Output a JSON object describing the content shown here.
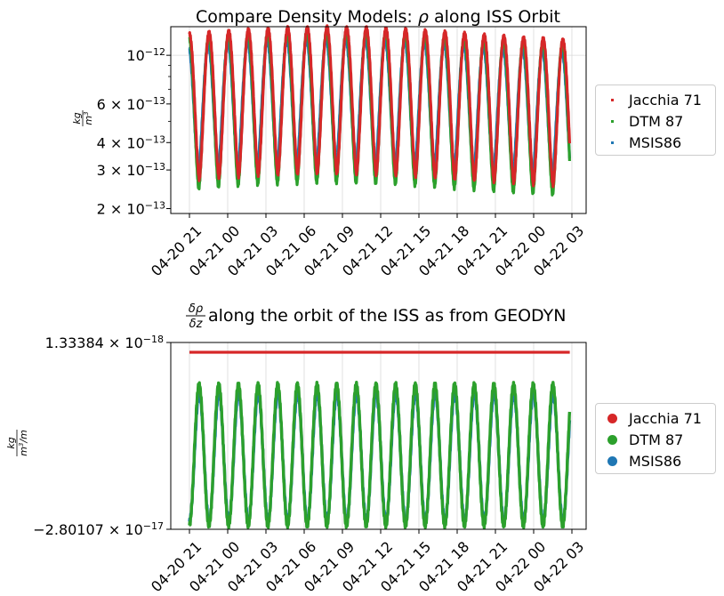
{
  "colors": {
    "jacchia": "#d62728",
    "dtm": "#2ca02c",
    "msis": "#1f77b4",
    "grid": "#d8d8d8"
  },
  "chart_data": [
    {
      "type": "scatter",
      "title": "Compare Density Models: ρ along ISS Orbit",
      "title_parts": {
        "prefix": "Compare Density Models: ",
        "symbol": "ρ",
        "suffix": " along ISS Orbit"
      },
      "ylabel": {
        "numerator": "kg",
        "denominator": "m",
        "exponent": "3"
      },
      "yscale": "log",
      "ylim": [
        1.9e-13,
        1.35e-12
      ],
      "yticks": [
        {
          "base": "10",
          "mult": "",
          "exp": "−12",
          "value": 1e-12
        },
        {
          "base": "10",
          "mult": "6 × ",
          "exp": "−13",
          "value": 6e-13
        },
        {
          "base": "10",
          "mult": "4 × ",
          "exp": "−13",
          "value": 4e-13
        },
        {
          "base": "10",
          "mult": "3 × ",
          "exp": "−13",
          "value": 3e-13
        },
        {
          "base": "10",
          "mult": "2 × ",
          "exp": "−13",
          "value": 2e-13
        }
      ],
      "x_tick_labels": [
        "04-20 21",
        "04-21 00",
        "04-21 03",
        "04-21 06",
        "04-21 09",
        "04-21 12",
        "04-21 15",
        "04-21 18",
        "04-21 21",
        "04-22 00",
        "04-22 03"
      ],
      "x_range": [
        "04-20 20:00",
        "04-22 03:20"
      ],
      "x_data_range": [
        "04-20 21:00",
        "04-22 02:50"
      ],
      "orbit_period_minutes": 92.5,
      "grid": true,
      "legend": {
        "placement": "right, outside",
        "marker": "small square",
        "entries": [
          "Jacchia 71",
          "DTM 87",
          "MSIS86"
        ]
      },
      "series": [
        {
          "name": "Jacchia 71",
          "color": "#d62728",
          "peak": 1.25e-12,
          "trough": 2.7e-13
        },
        {
          "name": "DTM 87",
          "color": "#2ca02c",
          "peak": 1.2e-12,
          "trough": 2.45e-13
        },
        {
          "name": "MSIS86",
          "color": "#1f77b4",
          "peak": 1.1e-12,
          "trough": 2.9e-13
        }
      ]
    },
    {
      "type": "scatter",
      "title": "δρ/δz along the orbit of the ISS as from GEODYN",
      "title_parts": {
        "numerator": "δρ",
        "denominator": "δz",
        "suffix": " along the orbit of the ISS as from GEODYN"
      },
      "ylabel": {
        "numerator": "kg",
        "denominator": "m",
        "exponent": "3",
        "suffix": "/m"
      },
      "yticks": [
        {
          "mantissa": "1.33384",
          "exp": "−18",
          "value": 1.33384e-18
        },
        {
          "mantissa": "−2.80107",
          "exp": "−17",
          "value": -2.80107e-17
        }
      ],
      "x_tick_labels": [
        "04-20 21",
        "04-21 00",
        "04-21 03",
        "04-21 06",
        "04-21 09",
        "04-21 12",
        "04-21 15",
        "04-21 18",
        "04-21 21",
        "04-22 00",
        "04-22 03"
      ],
      "grid": true,
      "legend": {
        "placement": "right, outside",
        "marker": "large dot",
        "entries": [
          "Jacchia 71",
          "DTM 87",
          "MSIS86"
        ]
      },
      "series": [
        {
          "name": "Jacchia 71",
          "color": "#d62728",
          "constant": 1.33384e-18
        },
        {
          "name": "DTM 87",
          "color": "#2ca02c",
          "peak": -5.3e-18,
          "trough": -2.74e-17
        },
        {
          "name": "MSIS86",
          "color": "#1f77b4",
          "peak": -6.6e-18,
          "trough": -2.68e-17
        }
      ]
    }
  ]
}
